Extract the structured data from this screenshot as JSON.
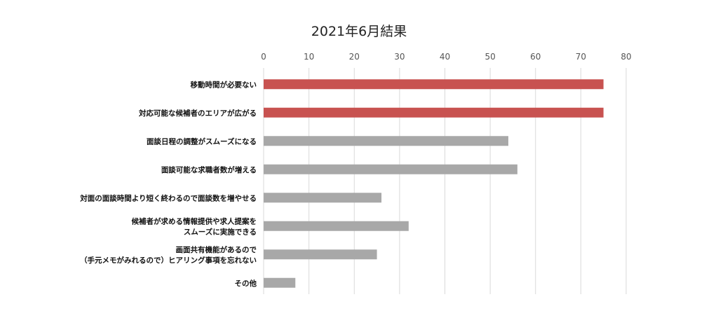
{
  "chart_data": {
    "type": "bar",
    "orientation": "horizontal",
    "title": "2021年6月結果",
    "xlabel": "",
    "ylabel": "",
    "xlim": [
      0,
      80
    ],
    "ticks": [
      0,
      10,
      20,
      30,
      40,
      50,
      60,
      70,
      80
    ],
    "grid": true,
    "legend": "none",
    "highlight_color": "#c85250",
    "default_color": "#a8a8a8",
    "categories": [
      [
        "移動時間が必要ない"
      ],
      [
        "対応可能な候補者のエリアが広がる"
      ],
      [
        "面談日程の調整がスムーズになる"
      ],
      [
        "面談可能な求職者数が増える"
      ],
      [
        "対面の面談時間より短く終わるので面談数を増やせる"
      ],
      [
        "候補者が求める情報提供や求人提案を",
        "スムーズに実施できる"
      ],
      [
        "画面共有機能があるので",
        "（手元メモがみれるので）ヒアリング事項を忘れない"
      ],
      [
        "その他"
      ]
    ],
    "values": [
      75,
      75,
      54,
      56,
      26,
      32,
      25,
      7
    ],
    "highlighted": [
      true,
      true,
      false,
      false,
      false,
      false,
      false,
      false
    ]
  }
}
